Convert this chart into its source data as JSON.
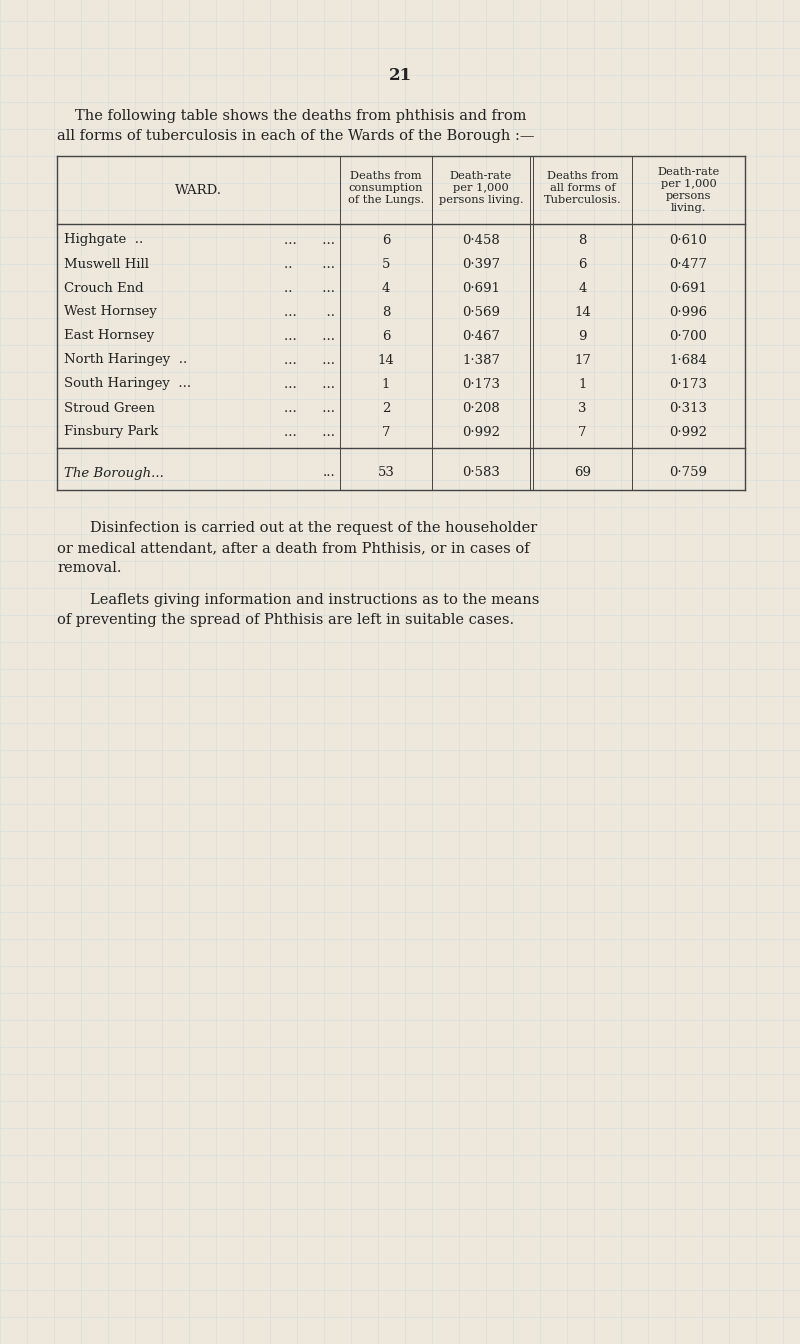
{
  "page_number": "21",
  "bg_color": "#ede8db",
  "grid_color": "#c5d4e0",
  "text_color": "#222222",
  "table_line_color": "#444444",
  "ward_names": [
    "Highgate  ..",
    "Muswell Hill",
    "Crouch End",
    "West Hornsey",
    "East Hornsey",
    "North Haringey  ..",
    "South Haringey  ...",
    "Stroud Green",
    "Finsbury Park"
  ],
  "ward_dots": [
    "...      ...",
    "..       ...",
    "..       ...",
    "...       ..",
    "...      ...",
    "...      ...",
    "...      ...",
    "...      ...",
    "...      ..."
  ],
  "deaths_consumption": [
    "6",
    "5",
    "4",
    "8",
    "6",
    "14",
    "1",
    "2",
    "7"
  ],
  "death_rate1": [
    "0·458",
    "0·397",
    "0·691",
    "0·569",
    "0·467",
    "1·387",
    "0·173",
    "0·208",
    "0·992"
  ],
  "deaths_tb": [
    "8",
    "6",
    "4",
    "14",
    "9",
    "17",
    "1",
    "3",
    "7"
  ],
  "death_rate2": [
    "0·610",
    "0·477",
    "0·691",
    "0·996",
    "0·700",
    "1·684",
    "0·173",
    "0·313",
    "0·992"
  ],
  "total_ward": "The Borough...",
  "total_ward_dots": "...",
  "total_deaths_consumption": "53",
  "total_death_rate1": "0·583",
  "total_deaths_tb": "69",
  "total_death_rate2": "0·759",
  "header_col1": "WARD.",
  "header_col2_l1": "Deaths from",
  "header_col2_l2": "consumption",
  "header_col2_l3": "of the Lungs.",
  "header_col3_l1": "Death-rate",
  "header_col3_l2": "per 1,000",
  "header_col3_l3": "persons living.",
  "header_col4_l1": "Deaths from",
  "header_col4_l2": "all forms of",
  "header_col4_l3": "Tuberculosis.",
  "header_col5_l1": "Death-rate",
  "header_col5_l2": "per 1,000",
  "header_col5_l3": "persons",
  "header_col5_l4": "living.",
  "intro_line1": "The following table shows the deaths from phthisis and from",
  "intro_line2": "all forms of tuberculosis in each of the Wards of the Borough :—",
  "footer1_l1": "Disinfection is carried out at the request of the householder",
  "footer1_l2": "or medical attendant, after a death from Phthisis, or in cases of",
  "footer1_l3": "removal.",
  "footer2_l1": "Leaflets giving information and instructions as to the means",
  "footer2_l2": "of preventing the spread of Phthisis are left in suitable cases."
}
